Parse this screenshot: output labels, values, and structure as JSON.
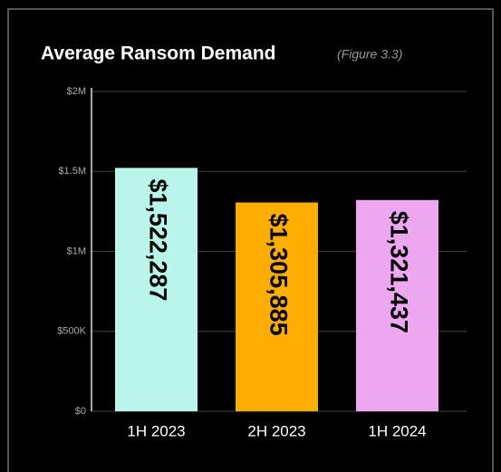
{
  "chart_data": {
    "type": "bar",
    "title": "Average Ransom Demand",
    "subtitle": "(Figure 3.3)",
    "categories": [
      "1H 2023",
      "2H 2023",
      "1H 2024"
    ],
    "values": [
      1522287,
      1305885,
      1321437
    ],
    "value_labels": [
      "$1,522,287",
      "$1,305,885",
      "$1,321,437"
    ],
    "colors": [
      "#baf5e9",
      "#ffae00",
      "#eda6f0"
    ],
    "ylim": [
      0,
      2000000
    ],
    "yticks": [
      {
        "value": 0,
        "label": "$0"
      },
      {
        "value": 500000,
        "label": "$500K"
      },
      {
        "value": 1000000,
        "label": "$1M"
      },
      {
        "value": 1500000,
        "label": "$1.5M"
      },
      {
        "value": 2000000,
        "label": "$2M"
      }
    ],
    "grid": true
  }
}
